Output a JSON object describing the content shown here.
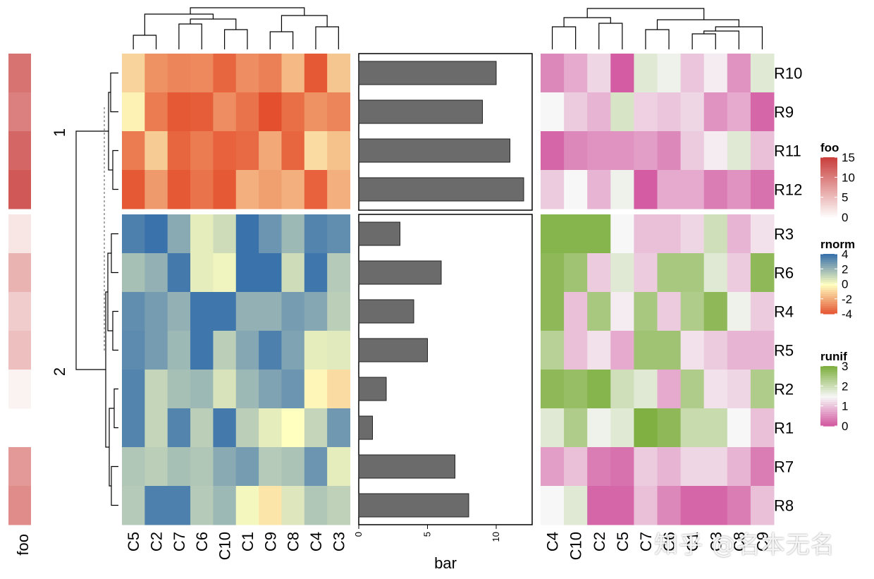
{
  "chart_data": [
    {
      "type": "heatmap",
      "name": "foo",
      "rows": [
        "R10",
        "R9",
        "R11",
        "R12",
        "R3",
        "R6",
        "R4",
        "R5",
        "R2",
        "R1",
        "R7",
        "R8"
      ],
      "values": [
        11,
        10,
        12,
        13,
        2,
        6,
        4,
        5,
        1,
        null,
        8,
        9
      ]
    },
    {
      "type": "heatmap",
      "name": "rnorm",
      "rows": [
        "R10",
        "R9",
        "R11",
        "R12",
        "R3",
        "R6",
        "R4",
        "R5",
        "R2",
        "R1",
        "R7",
        "R8"
      ],
      "columns": [
        "C5",
        "C2",
        "C7",
        "C6",
        "C10",
        "C1",
        "C9",
        "C8",
        "C4",
        "C3"
      ],
      "row_split_labels": [
        "1",
        "2"
      ],
      "row_split_sizes": [
        4,
        8
      ],
      "values": [
        [
          -1.0,
          -2.5,
          -2.8,
          -2.7,
          -3.5,
          -2.6,
          -2.9,
          -1.6,
          -3.8,
          -1.3
        ],
        [
          -0.3,
          -3.0,
          -3.8,
          -3.7,
          -2.6,
          -3.2,
          -4.2,
          -3.3,
          -2.5,
          -2.8
        ],
        [
          -3.0,
          -1.2,
          -3.5,
          -3.0,
          -3.6,
          -3.4,
          -2.0,
          -3.5,
          -0.8,
          -1.4
        ],
        [
          -3.8,
          -2.3,
          -3.8,
          -3.2,
          -3.8,
          -1.8,
          -2.2,
          -1.8,
          -3.6,
          -1.8
        ],
        [
          3.6,
          4.0,
          2.4,
          0.5,
          1.0,
          4.0,
          3.0,
          2.0,
          3.5,
          3.2
        ],
        [
          1.8,
          2.2,
          3.8,
          0.5,
          0.3,
          4.0,
          4.0,
          1.0,
          3.9,
          1.5
        ],
        [
          3.2,
          2.8,
          2.2,
          3.9,
          3.9,
          2.2,
          2.2,
          2.8,
          2.5,
          1.4
        ],
        [
          3.3,
          2.8,
          2.0,
          3.9,
          1.4,
          2.5,
          3.6,
          2.6,
          0.5,
          0.6
        ],
        [
          3.5,
          1.2,
          1.8,
          2.0,
          0.8,
          2.0,
          2.6,
          3.0,
          -0.2,
          -0.8
        ],
        [
          3.5,
          1.2,
          3.5,
          1.4,
          3.8,
          1.4,
          0.5,
          0.0,
          1.2,
          2.9
        ],
        [
          1.6,
          1.4,
          1.8,
          1.6,
          2.4,
          2.8,
          1.5,
          1.7,
          3.0,
          0.5
        ],
        [
          1.5,
          3.6,
          3.6,
          1.5,
          2.0,
          0.2,
          -0.6,
          0.7,
          1.6,
          1.3
        ]
      ],
      "legend_title": "rnorm",
      "legend_ticks": [
        4,
        2,
        0,
        -2,
        -4
      ],
      "colors": {
        "high": "#3a72ab",
        "mid": "#ffffbf",
        "low": "#e4502e"
      }
    },
    {
      "type": "bar",
      "orientation": "horizontal",
      "categories": [
        "R10",
        "R9",
        "R11",
        "R12",
        "R3",
        "R6",
        "R4",
        "R5",
        "R2",
        "R1",
        "R7",
        "R8"
      ],
      "values": [
        10,
        9,
        11,
        12,
        3,
        6,
        4,
        5,
        2,
        1,
        7,
        8
      ],
      "xlabel": "bar",
      "x_ticks": [
        0,
        5,
        10
      ],
      "xlim": [
        0,
        12.5
      ],
      "bar_color": "#6b6b6b"
    },
    {
      "type": "heatmap",
      "name": "runif",
      "rows": [
        "R10",
        "R9",
        "R11",
        "R12",
        "R3",
        "R6",
        "R4",
        "R5",
        "R2",
        "R1",
        "R7",
        "R8"
      ],
      "columns": [
        "C4",
        "C10",
        "C2",
        "C5",
        "C7",
        "C6",
        "C1",
        "C3",
        "C8",
        "C9"
      ],
      "values": [
        [
          0.5,
          0.8,
          1.2,
          0.1,
          1.8,
          1.6,
          1.05,
          1.4,
          0.6,
          1.8
        ],
        [
          1.5,
          1.1,
          0.9,
          1.9,
          1.15,
          1.05,
          1.2,
          0.6,
          0.8,
          0.2
        ],
        [
          0.2,
          0.5,
          0.6,
          0.6,
          0.7,
          0.5,
          1.1,
          1.4,
          1.8,
          1.0
        ],
        [
          1.1,
          1.5,
          0.9,
          1.6,
          0.1,
          0.8,
          0.8,
          0.4,
          0.6,
          0.3
        ],
        [
          2.9,
          2.9,
          2.9,
          1.5,
          1.0,
          1.0,
          1.2,
          2.0,
          0.9,
          1.3
        ],
        [
          2.8,
          2.6,
          1.1,
          1.8,
          1.1,
          2.5,
          2.5,
          1.8,
          1.1,
          2.8
        ],
        [
          2.8,
          1.0,
          2.5,
          1.4,
          2.5,
          1.1,
          2.4,
          2.8,
          1.6,
          1.1
        ],
        [
          2.3,
          1.0,
          1.3,
          0.8,
          2.6,
          2.6,
          1.3,
          1.1,
          0.9,
          0.9
        ],
        [
          2.8,
          2.7,
          2.9,
          2.0,
          1.8,
          0.8,
          2.4,
          1.3,
          1.2,
          2.4
        ],
        [
          1.8,
          2.4,
          1.6,
          1.8,
          3.0,
          2.8,
          2.1,
          2.1,
          1.5,
          1.0
        ],
        [
          0.7,
          1.0,
          0.4,
          0.3,
          1.1,
          0.9,
          1.2,
          1.2,
          0.9,
          0.4
        ],
        [
          1.5,
          1.8,
          0.2,
          0.2,
          1.0,
          0.5,
          0.2,
          0.2,
          0.4,
          1.0
        ]
      ],
      "legend_title": "runif",
      "legend_ticks": [
        3,
        2,
        1,
        0
      ],
      "colors": {
        "high": "#7fb041",
        "mid": "#f7f7f7",
        "low": "#d0519c"
      }
    }
  ],
  "legends": {
    "foo": {
      "title": "foo",
      "ticks": [
        15,
        10,
        5,
        0
      ],
      "colors": {
        "high": "#c9403e",
        "low": "#ffffff"
      }
    }
  },
  "labels": {
    "foo_axis": "foo",
    "bar_axis": "bar",
    "split_1": "1",
    "split_2": "2"
  },
  "watermark": "知乎 @名本无名"
}
